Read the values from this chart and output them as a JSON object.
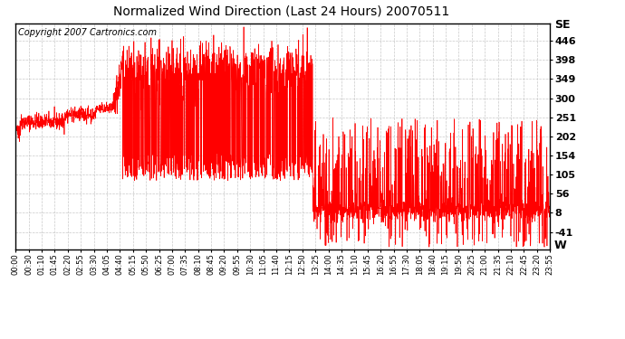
{
  "title": "Normalized Wind Direction (Last 24 Hours) 20070511",
  "copyright_text": "Copyright 2007 Cartronics.com",
  "line_color": "#FF0000",
  "bg_color": "#FFFFFF",
  "plot_bg_color": "#FFFFFF",
  "grid_color": "#BBBBBB",
  "yticks": [
    446,
    398,
    349,
    300,
    251,
    202,
    154,
    105,
    56,
    8,
    -41
  ],
  "se_label": "SE",
  "w_label": "W",
  "ylim": [
    -85,
    490
  ],
  "xtick_labels": [
    "00:00",
    "00:30",
    "01:10",
    "01:45",
    "02:20",
    "02:55",
    "03:30",
    "04:05",
    "04:40",
    "05:15",
    "05:50",
    "06:25",
    "07:00",
    "07:35",
    "08:10",
    "08:45",
    "09:20",
    "09:55",
    "10:30",
    "11:05",
    "11:40",
    "12:15",
    "12:50",
    "13:25",
    "14:00",
    "14:35",
    "15:10",
    "15:45",
    "16:20",
    "16:55",
    "17:30",
    "18:05",
    "18:40",
    "19:15",
    "19:50",
    "20:25",
    "21:00",
    "21:35",
    "22:10",
    "22:45",
    "23:20",
    "23:55"
  ],
  "n_points": 2880,
  "seed": 42,
  "title_fontsize": 10,
  "copyright_fontsize": 7,
  "ytick_fontsize": 8,
  "xtick_fontsize": 6
}
